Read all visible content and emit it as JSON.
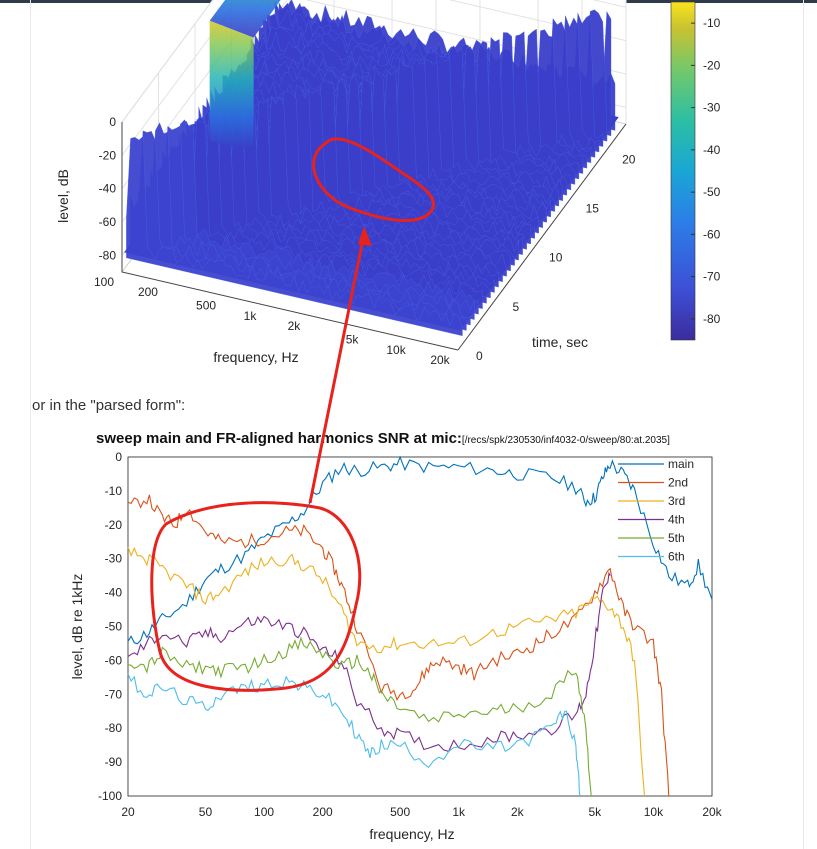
{
  "chart_data": [
    {
      "type": "surface",
      "xlabel": "frequency, Hz",
      "ylabel": "time, sec",
      "zlabel": "level, dB",
      "x_ticks": [
        "100",
        "200",
        "500",
        "1k",
        "2k",
        "5k",
        "10k",
        "20k"
      ],
      "y_ticks": [
        "0",
        "5",
        "10",
        "15",
        "20"
      ],
      "z_ticks": [
        "0",
        "-20",
        "-40",
        "-60",
        "-80"
      ],
      "xlim": [
        100,
        20000
      ],
      "ylim": [
        0,
        23
      ],
      "zlim": [
        -90,
        0
      ],
      "colorbar": {
        "ticks": [
          "-10",
          "-20",
          "-30",
          "-40",
          "-50",
          "-60",
          "-70",
          "-80"
        ],
        "range": [
          -85,
          -5
        ],
        "colors": [
          "#3b2c9c",
          "#3d4fd6",
          "#2c7ee8",
          "#1aa6d5",
          "#2cbfa3",
          "#74c86b",
          "#c7c231",
          "#f9e21c"
        ]
      },
      "annotation": "red circle around mid-band harmonic ridge, arrow to lower chart"
    },
    {
      "type": "line",
      "title": "sweep main and FR-aligned harmonics SNR at mic:",
      "subtitle": "[/recs/spk/230530/inf4032-0/sweep/80:at.2035]",
      "xlabel": "frequency, Hz",
      "ylabel": "level, dB re 1kHz",
      "x_scale": "log",
      "xlim": [
        20,
        20000
      ],
      "ylim": [
        -100,
        0
      ],
      "x_ticks": [
        20,
        50,
        100,
        200,
        500,
        1000,
        2000,
        5000,
        10000,
        20000
      ],
      "x_tick_labels": [
        "20",
        "50",
        "100",
        "200",
        "500",
        "1k",
        "2k",
        "5k",
        "10k",
        "20k"
      ],
      "y_ticks": [
        0,
        -10,
        -20,
        -30,
        -40,
        -50,
        -60,
        -70,
        -80,
        -90,
        -100
      ],
      "grid": true,
      "legend_position": "top-right",
      "series": [
        {
          "name": "main",
          "color": "#0072bd",
          "x": [
            20,
            25,
            30,
            40,
            50,
            60,
            80,
            100,
            130,
            160,
            200,
            250,
            300,
            400,
            500,
            700,
            1000,
            1500,
            2000,
            3000,
            4000,
            4500,
            5000,
            5500,
            6000,
            7000,
            8000,
            10000,
            12000,
            15000,
            17000,
            20000
          ],
          "y": [
            -55,
            -52,
            -48,
            -43,
            -36,
            -33,
            -29,
            -24,
            -20,
            -16,
            -8,
            -3,
            -4,
            -3,
            -2,
            -3,
            -3,
            -4,
            -5,
            -6,
            -9,
            -13,
            -12,
            -6,
            -2,
            -5,
            -10,
            -25,
            -35,
            -38,
            -32,
            -42
          ]
        },
        {
          "name": "2nd",
          "color": "#d95319",
          "x": [
            20,
            25,
            30,
            35,
            40,
            50,
            60,
            80,
            100,
            130,
            160,
            200,
            230,
            260,
            300,
            400,
            500,
            600,
            700,
            800,
            1000,
            1200,
            1500,
            2000,
            2500,
            3000,
            4000,
            5000,
            6000,
            7000,
            8000,
            10000,
            11000,
            12000
          ],
          "y": [
            -15,
            -12,
            -18,
            -20,
            -15,
            -22,
            -25,
            -25,
            -24,
            -22,
            -22,
            -27,
            -33,
            -40,
            -50,
            -68,
            -70,
            -68,
            -62,
            -60,
            -62,
            -64,
            -60,
            -58,
            -55,
            -52,
            -48,
            -40,
            -33,
            -45,
            -50,
            -55,
            -70,
            -100
          ]
        },
        {
          "name": "3rd",
          "color": "#edb120",
          "x": [
            20,
            25,
            30,
            40,
            50,
            60,
            80,
            100,
            130,
            160,
            200,
            250,
            300,
            400,
            500,
            700,
            1000,
            1500,
            2000,
            3000,
            4000,
            5000,
            6000,
            7000,
            8000,
            9000
          ],
          "y": [
            -28,
            -30,
            -33,
            -38,
            -42,
            -40,
            -34,
            -31,
            -30,
            -32,
            -36,
            -45,
            -55,
            -56,
            -55,
            -55,
            -55,
            -52,
            -50,
            -48,
            -46,
            -42,
            -44,
            -50,
            -60,
            -100
          ]
        },
        {
          "name": "4th",
          "color": "#7e2f8e",
          "x": [
            20,
            25,
            30,
            40,
            50,
            60,
            80,
            100,
            130,
            160,
            200,
            250,
            300,
            400,
            500,
            700,
            1000,
            1500,
            2000,
            3000,
            4000,
            4500,
            5000,
            5500,
            6000
          ],
          "y": [
            -60,
            -55,
            -52,
            -55,
            -52,
            -53,
            -49,
            -48,
            -50,
            -52,
            -57,
            -60,
            -72,
            -80,
            -82,
            -85,
            -85,
            -83,
            -82,
            -80,
            -76,
            -70,
            -55,
            -40,
            -35
          ]
        },
        {
          "name": "5th",
          "color": "#77ac30",
          "x": [
            20,
            25,
            30,
            40,
            50,
            60,
            80,
            100,
            130,
            160,
            200,
            250,
            300,
            350,
            400,
            500,
            700,
            1000,
            1500,
            2000,
            3000,
            4000,
            4500,
            4800
          ],
          "y": [
            -60,
            -62,
            -58,
            -62,
            -62,
            -63,
            -62,
            -60,
            -57,
            -55,
            -58,
            -62,
            -60,
            -64,
            -70,
            -74,
            -78,
            -76,
            -75,
            -74,
            -70,
            -62,
            -80,
            -100
          ]
        },
        {
          "name": "6th",
          "color": "#4dbeee",
          "x": [
            20,
            25,
            30,
            40,
            50,
            60,
            80,
            100,
            130,
            160,
            200,
            250,
            300,
            350,
            400,
            500,
            700,
            1000,
            1500,
            2000,
            3000,
            3500,
            4000,
            4200
          ],
          "y": [
            -65,
            -70,
            -68,
            -72,
            -74,
            -70,
            -68,
            -67,
            -66,
            -68,
            -70,
            -75,
            -82,
            -88,
            -85,
            -85,
            -90,
            -85,
            -86,
            -85,
            -80,
            -75,
            -85,
            -100
          ]
        }
      ]
    }
  ],
  "caption": "or in the \"parsed form\":"
}
